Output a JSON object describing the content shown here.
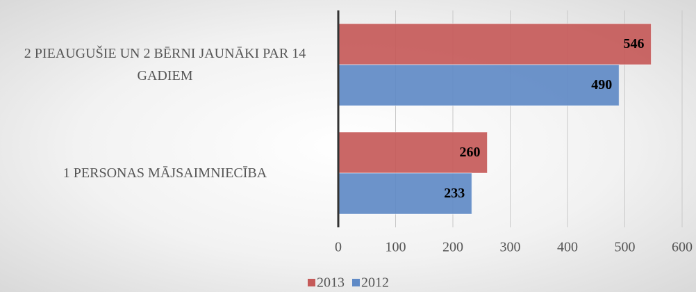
{
  "chart_data": {
    "type": "bar",
    "orientation": "horizontal",
    "categories": [
      "2 PIEAUGUŠIE UN 2 BĒRNI JAUNĀKI PAR 14 GADIEM",
      "1 PERSONAS MĀJSAIMNIECĪBA"
    ],
    "series": [
      {
        "name": "2013",
        "color": "#c55a59",
        "values": [
          546,
          260
        ]
      },
      {
        "name": "2012",
        "color": "#5f8ac6",
        "values": [
          490,
          233
        ]
      }
    ],
    "xlim": [
      0,
      600
    ],
    "xticks": [
      0,
      100,
      200,
      300,
      400,
      500,
      600
    ],
    "grid": true,
    "legend": "bottom"
  }
}
